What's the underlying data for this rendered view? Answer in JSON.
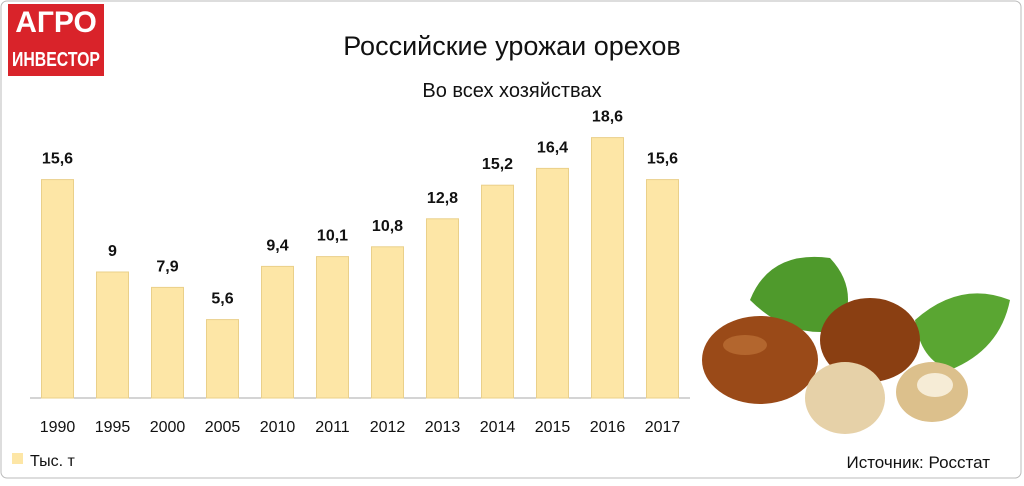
{
  "logo": {
    "line1": "АГРО",
    "line2": "ИНВЕСТОР"
  },
  "chart_data": {
    "type": "bar",
    "title": "Российские урожаи орехов",
    "subtitle": "Во всех хозяйствах",
    "source": "Источник: Росстат",
    "categories": [
      "1990",
      "1995",
      "2000",
      "2005",
      "2010",
      "2011",
      "2012",
      "2013",
      "2014",
      "2015",
      "2016",
      "2017"
    ],
    "series": [
      {
        "name": "Тыс. т",
        "color": "#fde6a6",
        "values": [
          15.6,
          9,
          7.9,
          5.6,
          9.4,
          10.1,
          10.8,
          12.8,
          15.2,
          16.4,
          18.6,
          15.6
        ],
        "value_labels": [
          "15,6",
          "9",
          "7,9",
          "5,6",
          "9,4",
          "10,1",
          "10,8",
          "12,8",
          "15,2",
          "16,4",
          "18,6",
          "15,6"
        ]
      }
    ]
  }
}
